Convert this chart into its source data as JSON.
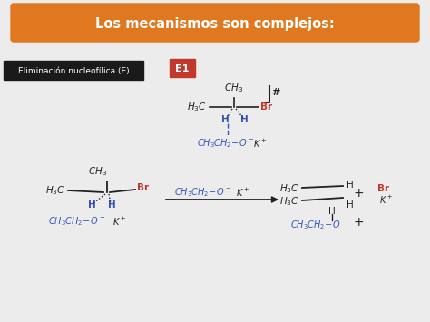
{
  "title": "Los mecanismos son complejos:",
  "title_bg": "#E07820",
  "title_fg": "#FFFFFF",
  "bg_color": "#ECECEC",
  "label_text": "Eliminación nucleofílica (E)",
  "label_bg": "#1A1A1A",
  "label_fg": "#FFFFFF",
  "e1_text": "E1",
  "e1_bg": "#C0392B",
  "e1_fg": "#FFFFFF",
  "red": "#C0392B",
  "blue": "#3355BB",
  "black": "#222222",
  "white": "#FFFFFF",
  "fig_w": 4.74,
  "fig_h": 3.55,
  "dpi": 100
}
